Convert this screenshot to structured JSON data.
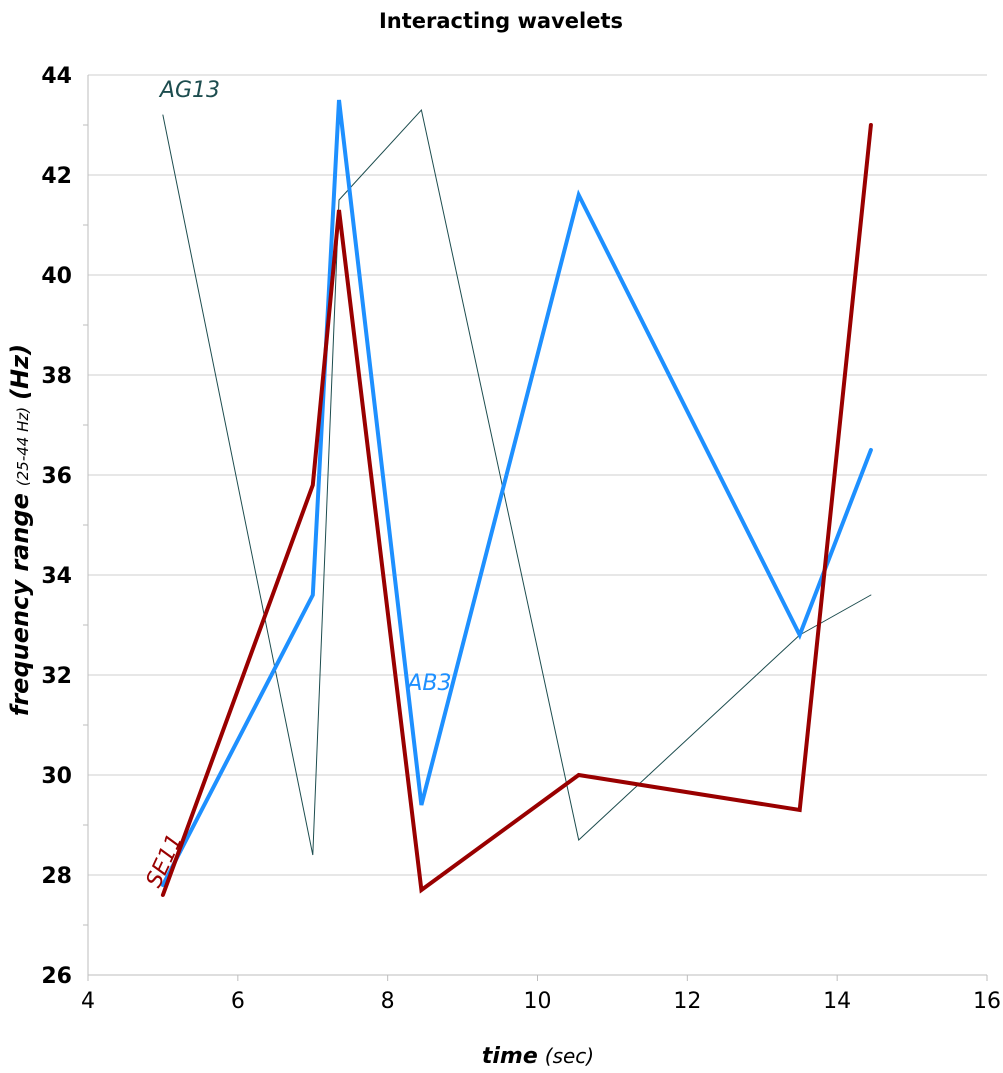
{
  "chart_data": {
    "type": "line",
    "title": "Interacting wavelets",
    "xlabel": {
      "main": "time",
      "unit": "(sec)"
    },
    "ylabel": {
      "main": "frequency range",
      "range": "(25-44 Hz)",
      "unit": "(Hz)"
    },
    "xlim": [
      4,
      16
    ],
    "ylim": [
      26,
      44
    ],
    "xticks": [
      4,
      6,
      8,
      10,
      12,
      14,
      16
    ],
    "yticks": [
      26,
      28,
      30,
      32,
      34,
      36,
      38,
      40,
      42,
      44
    ],
    "grid": "horizontal",
    "series": [
      {
        "name": "AG13",
        "color": "#1d4d4f",
        "width": "thin",
        "x": [
          5.0,
          7.0,
          7.35,
          8.45,
          10.55,
          13.5,
          14.45
        ],
        "y": [
          43.2,
          28.4,
          41.5,
          43.3,
          28.7,
          32.8,
          33.6
        ]
      },
      {
        "name": "AB3",
        "color": "#1e90ff",
        "width": "thick",
        "x": [
          5.0,
          7.0,
          7.35,
          8.45,
          10.55,
          13.5,
          14.45
        ],
        "y": [
          27.8,
          33.6,
          43.5,
          29.4,
          41.6,
          32.8,
          36.5
        ]
      },
      {
        "name": "SE11",
        "color": "#990000",
        "width": "thick",
        "x": [
          5.0,
          7.0,
          7.35,
          8.45,
          10.55,
          13.5,
          14.45
        ],
        "y": [
          27.6,
          35.8,
          41.3,
          27.7,
          30.0,
          29.3,
          43.0
        ]
      }
    ]
  }
}
